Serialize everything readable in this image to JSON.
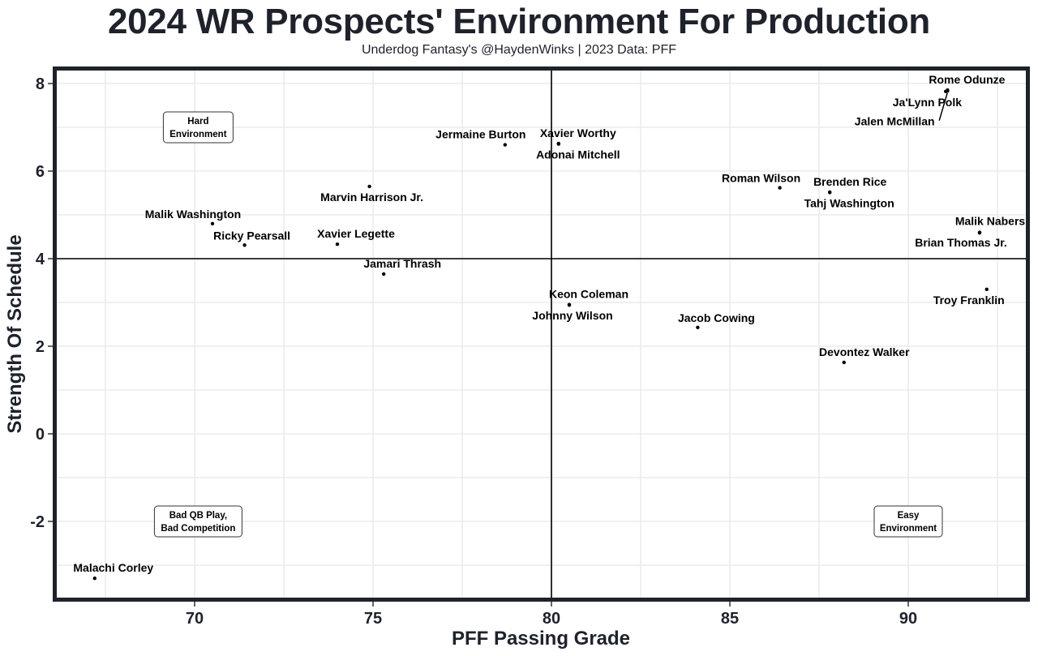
{
  "chart_data": {
    "type": "scatter",
    "title": "2024 WR Prospects' Environment For Production",
    "subtitle": "Underdog Fantasy's @HaydenWinks | 2023 Data: PFF",
    "xlabel": "PFF Passing Grade",
    "ylabel": "Strength Of Schedule",
    "xlim": [
      65.5,
      93.4
    ],
    "ylim": [
      -3.75,
      8.35
    ],
    "xticks": [
      70,
      75,
      80,
      85,
      90
    ],
    "yticks": [
      -2,
      0,
      2,
      4,
      6,
      8
    ],
    "ytick_labels": [
      "-2",
      "0",
      "2",
      "4",
      "6",
      "8"
    ],
    "xtick_labels": [
      "70",
      "75",
      "80",
      "85",
      "90"
    ],
    "grid": true,
    "reference_lines": {
      "x": 80,
      "y": 4
    },
    "points": [
      {
        "name": "Rome Odunze",
        "x": 91.1,
        "y": 7.85
      },
      {
        "name": "Ja'Lynn Polk",
        "x": 91.1,
        "y": 7.83
      },
      {
        "name": "Jalen McMillan",
        "x": 91.05,
        "y": 7.82
      },
      {
        "name": "Jermaine Burton",
        "x": 78.7,
        "y": 6.6
      },
      {
        "name": "Xavier Worthy",
        "x": 80.2,
        "y": 6.63
      },
      {
        "name": "Adonai Mitchell",
        "x": 80.2,
        "y": 6.62
      },
      {
        "name": "Marvin Harrison Jr.",
        "x": 74.9,
        "y": 5.65
      },
      {
        "name": "Roman Wilson",
        "x": 86.4,
        "y": 5.62
      },
      {
        "name": "Brenden Rice",
        "x": 87.8,
        "y": 5.52
      },
      {
        "name": "Tahj Washington",
        "x": 87.8,
        "y": 5.51
      },
      {
        "name": "Malik Washington",
        "x": 70.5,
        "y": 4.8
      },
      {
        "name": "Ricky Pearsall",
        "x": 71.4,
        "y": 4.31
      },
      {
        "name": "Xavier Legette",
        "x": 74.0,
        "y": 4.33
      },
      {
        "name": "Malik Nabers",
        "x": 92.0,
        "y": 4.6
      },
      {
        "name": "Brian Thomas Jr.",
        "x": 92.0,
        "y": 4.59
      },
      {
        "name": "Jamari Thrash",
        "x": 75.3,
        "y": 3.65
      },
      {
        "name": "Troy Franklin",
        "x": 92.2,
        "y": 3.3
      },
      {
        "name": "Keon Coleman",
        "x": 80.5,
        "y": 2.95
      },
      {
        "name": "Johnny Wilson",
        "x": 80.5,
        "y": 2.94
      },
      {
        "name": "Jacob Cowing",
        "x": 84.1,
        "y": 2.43
      },
      {
        "name": "Devontez Walker",
        "x": 88.2,
        "y": 1.63
      },
      {
        "name": "Malachi Corley",
        "x": 67.2,
        "y": -3.3
      }
    ],
    "annotations": [
      {
        "text": [
          "Hard",
          "Environment"
        ],
        "x": 70.1,
        "y": 7.0
      },
      {
        "text": [
          "Bad QB Play,",
          "Bad Competition"
        ],
        "x": 70.1,
        "y": -2.0
      },
      {
        "text": [
          "Easy",
          "Environment"
        ],
        "x": 90.0,
        "y": -2.0
      }
    ]
  }
}
